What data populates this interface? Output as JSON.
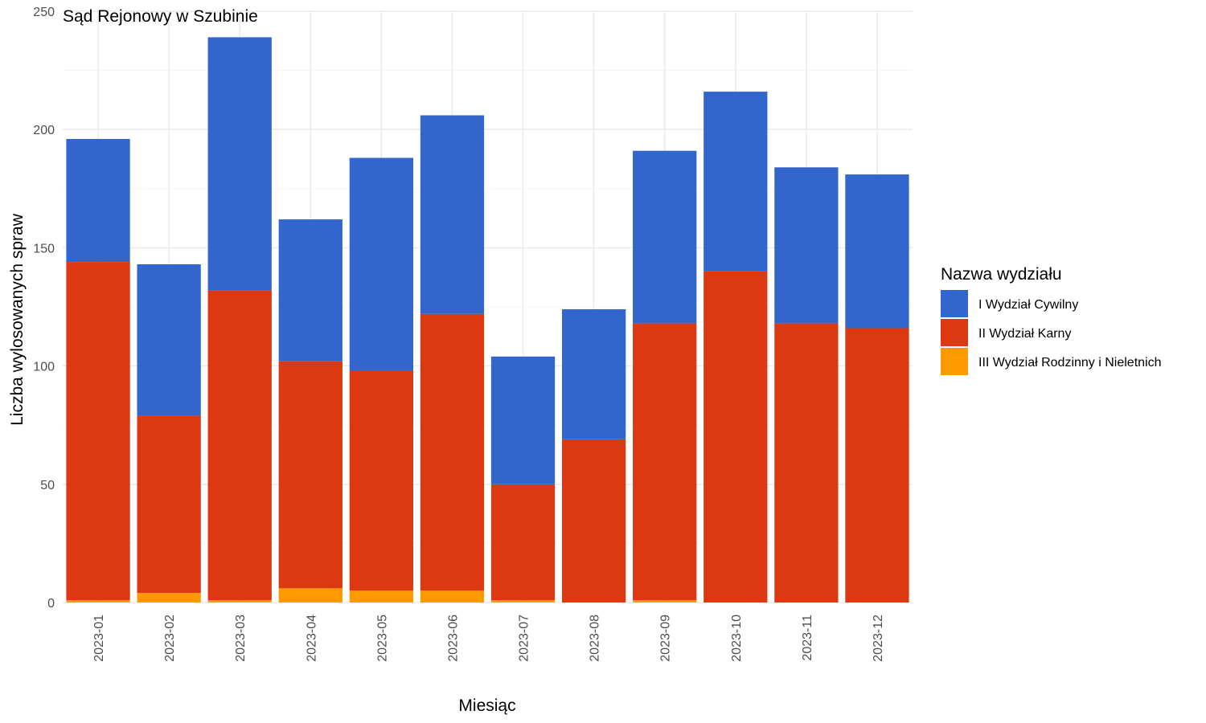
{
  "chart_data": {
    "type": "bar",
    "stacked": true,
    "title": "Sąd Rejonowy w Szubinie",
    "xlabel": "Miesiąc",
    "ylabel": "Liczba wylosowanych spraw",
    "ylim": [
      0,
      250
    ],
    "yticks": [
      0,
      50,
      100,
      150,
      200,
      250
    ],
    "grid": true,
    "legend_position": "right",
    "legend_title": "Nazwa wydziału",
    "categories": [
      "2023-01",
      "2023-02",
      "2023-03",
      "2023-04",
      "2023-05",
      "2023-06",
      "2023-07",
      "2023-08",
      "2023-09",
      "2023-10",
      "2023-11",
      "2023-12"
    ],
    "series": [
      {
        "name": "III Wydział Rodzinny i Nieletnich",
        "color": "#FF9900",
        "values": [
          1,
          4,
          1,
          6,
          5,
          5,
          1,
          0,
          1,
          0,
          0,
          0
        ]
      },
      {
        "name": "II Wydział Karny",
        "color": "#DC3912",
        "values": [
          143,
          75,
          131,
          96,
          93,
          117,
          49,
          69,
          117,
          140,
          118,
          116
        ]
      },
      {
        "name": "I Wydział Cywilny",
        "color": "#3366CC",
        "values": [
          52,
          64,
          107,
          60,
          90,
          84,
          54,
          55,
          73,
          76,
          66,
          65
        ]
      }
    ],
    "legend_order": [
      "I Wydział Cywilny",
      "II Wydział Karny",
      "III Wydział Rodzinny i Nieletnich"
    ]
  }
}
